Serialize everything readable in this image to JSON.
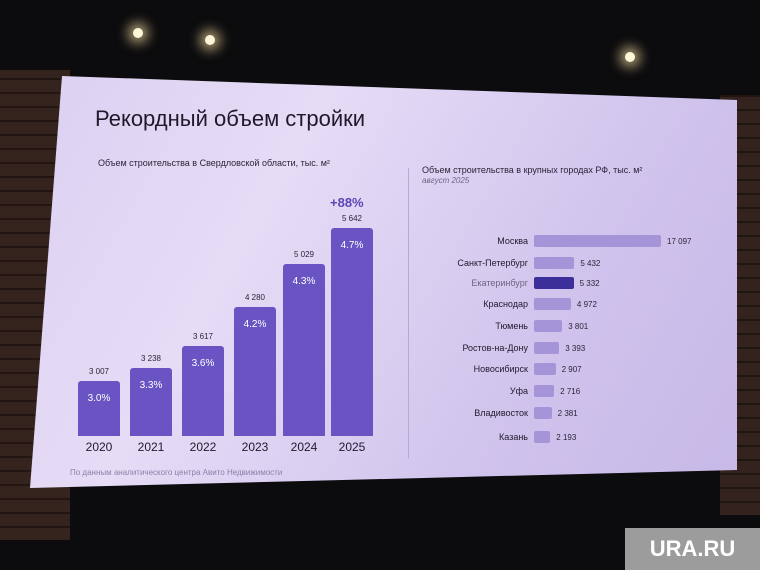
{
  "slide": {
    "title": "Рекордный объем стройки",
    "source_note": "По данным аналитического центра Авито Недвижимости"
  },
  "watermark": "URA.RU",
  "chart_data": [
    {
      "type": "bar",
      "title": "Объем строительства в Свердловской области, тыс. м²",
      "categories": [
        "2020",
        "2021",
        "2022",
        "2023",
        "2024",
        "2025"
      ],
      "values": [
        3007,
        3238,
        3617,
        4280,
        5029,
        5642
      ],
      "value_labels": [
        "3 007",
        "3 238",
        "3 617",
        "4 280",
        "5 029",
        "5 642"
      ],
      "bar_labels": [
        "3.0%",
        "3.3%",
        "3.6%",
        "4.2%",
        "4.3%",
        "4.7%"
      ],
      "annotation": "+88%",
      "color": "#6a54c3"
    },
    {
      "type": "bar",
      "orientation": "horizontal",
      "title": "Объем строительства в крупных городах РФ, тыс. м²",
      "subtitle": "август 2025",
      "categories": [
        "Москва",
        "Санкт-Петербург",
        "Екатеринбург",
        "Краснодар",
        "Тюмень",
        "Ростов-на-Дону",
        "Новосибирск",
        "Уфа",
        "Владивосток",
        "Казань"
      ],
      "values": [
        17097,
        5432,
        5332,
        4972,
        3801,
        3393,
        2907,
        2716,
        2381,
        2193
      ],
      "value_labels": [
        "17 097",
        "5 432",
        "5 332",
        "4 972",
        "3 801",
        "3 393",
        "2 907",
        "2 716",
        "2 381",
        "2 193"
      ],
      "highlight": "Екатеринбург",
      "color": "#a594d8",
      "highlight_color": "#3d2f9a"
    }
  ]
}
